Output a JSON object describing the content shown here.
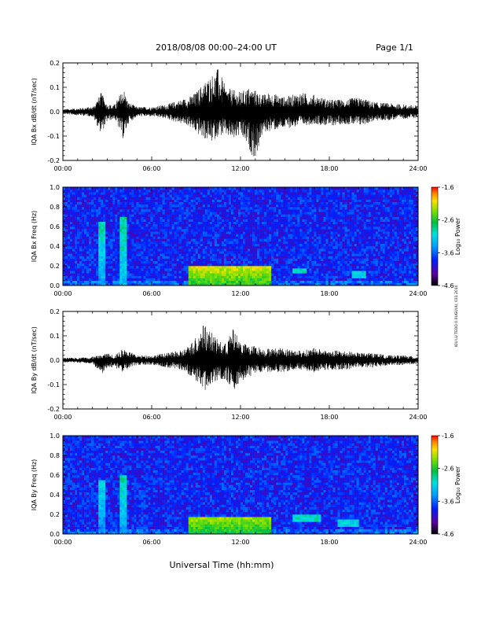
{
  "header": {
    "title": "2018/08/08  00:00–24:00 UT",
    "page": "Page 1/1"
  },
  "credit": "IOU LU TEOO 0.0UGUUU, 031 2010",
  "x_axis_label": "Universal Time (hh:mm)",
  "colors": {
    "trace": "#000000",
    "frame": "#000000",
    "background": "#ffffff"
  },
  "chart_data": [
    {
      "type": "line",
      "ylabel": "IQA Bx dB/dt (nT/sec)",
      "xlim": [
        0,
        24
      ],
      "ylim": [
        -0.2,
        0.2
      ],
      "x_ticks": [
        "00:00",
        "06:00",
        "12:00",
        "18:00",
        "24:00"
      ],
      "y_ticks": [
        "-0.2",
        "-0.1",
        "0.0",
        "0.1",
        "0.2"
      ],
      "series": [
        {
          "x": [
            0,
            1,
            2,
            2.6,
            3,
            3.5,
            4.1,
            4.4,
            5,
            6,
            7,
            8,
            8.5,
            9,
            9.5,
            10,
            10.5,
            11,
            11.5,
            12,
            12.5,
            13,
            13.5,
            14,
            15,
            16,
            17,
            18,
            19,
            20,
            21,
            22,
            23,
            24
          ],
          "envelope_max": [
            0.01,
            0.015,
            0.02,
            0.08,
            0.03,
            0.03,
            0.1,
            0.04,
            0.02,
            0.02,
            0.03,
            0.05,
            0.06,
            0.08,
            0.12,
            0.15,
            0.18,
            0.1,
            0.09,
            0.08,
            0.1,
            0.09,
            0.07,
            0.08,
            0.06,
            0.08,
            0.07,
            0.05,
            0.05,
            0.06,
            0.04,
            0.035,
            0.03,
            0.025
          ],
          "envelope_min": [
            -0.01,
            -0.015,
            -0.02,
            -0.09,
            -0.04,
            -0.03,
            -0.12,
            -0.05,
            -0.02,
            -0.02,
            -0.03,
            -0.05,
            -0.06,
            -0.09,
            -0.11,
            -0.13,
            -0.1,
            -0.1,
            -0.12,
            -0.1,
            -0.15,
            -0.2,
            -0.09,
            -0.08,
            -0.07,
            -0.06,
            -0.05,
            -0.06,
            -0.05,
            -0.06,
            -0.04,
            -0.035,
            -0.03,
            -0.025
          ]
        }
      ]
    },
    {
      "type": "heatmap",
      "ylabel": "IQA Bx Freq (Hz)",
      "xlim": [
        0,
        24
      ],
      "ylim": [
        0,
        1.0
      ],
      "x_ticks": [
        "00:00",
        "06:00",
        "12:00",
        "18:00",
        "24:00"
      ],
      "y_ticks": [
        "0.0",
        "0.2",
        "0.4",
        "0.6",
        "0.8",
        "1.0"
      ],
      "colorbar": {
        "label": "Log₁₀ Power",
        "min": -4.6,
        "max": -1.6,
        "ticks": [
          "-1.6",
          "-2.6",
          "-3.6",
          "-4.6"
        ]
      },
      "features": [
        {
          "x_range": [
            2.4,
            2.8
          ],
          "freq_range": [
            0,
            0.65
          ],
          "level": -3.4
        },
        {
          "x_range": [
            3.9,
            4.3
          ],
          "freq_range": [
            0,
            0.7
          ],
          "level": -3.3
        },
        {
          "x_range": [
            8.5,
            14
          ],
          "freq_range": [
            0,
            0.2
          ],
          "level": -2.6
        },
        {
          "x_range": [
            15.5,
            16.5
          ],
          "freq_range": [
            0.12,
            0.18
          ],
          "level": -3.0
        },
        {
          "x_range": [
            19.5,
            20.5
          ],
          "freq_range": [
            0.08,
            0.14
          ],
          "level": -3.1
        }
      ]
    },
    {
      "type": "line",
      "ylabel": "IQA By dB/dt (nT/sec)",
      "xlim": [
        0,
        24
      ],
      "ylim": [
        -0.2,
        0.2
      ],
      "x_ticks": [
        "00:00",
        "06:00",
        "12:00",
        "18:00",
        "24:00"
      ],
      "y_ticks": [
        "-0.2",
        "-0.1",
        "0.0",
        "0.1",
        "0.2"
      ],
      "series": [
        {
          "x": [
            0,
            1,
            2,
            2.6,
            3,
            3.5,
            4.1,
            4.4,
            5,
            6,
            7,
            8,
            8.5,
            9,
            9.5,
            10,
            10.5,
            11,
            11.5,
            12,
            12.5,
            13,
            13.5,
            14,
            15,
            16,
            17,
            18,
            19,
            20,
            21,
            22,
            23,
            24
          ],
          "envelope_max": [
            0.01,
            0.01,
            0.015,
            0.02,
            0.03,
            0.02,
            0.05,
            0.04,
            0.02,
            0.02,
            0.03,
            0.04,
            0.06,
            0.1,
            0.15,
            0.12,
            0.08,
            0.07,
            0.13,
            0.08,
            0.06,
            0.06,
            0.05,
            0.05,
            0.05,
            0.04,
            0.05,
            0.04,
            0.04,
            0.03,
            0.03,
            0.02,
            0.02,
            0.015
          ],
          "envelope_min": [
            -0.01,
            -0.01,
            -0.015,
            -0.06,
            -0.03,
            -0.03,
            -0.05,
            -0.04,
            -0.02,
            -0.02,
            -0.03,
            -0.04,
            -0.06,
            -0.09,
            -0.14,
            -0.1,
            -0.08,
            -0.08,
            -0.13,
            -0.09,
            -0.07,
            -0.06,
            -0.05,
            -0.05,
            -0.05,
            -0.04,
            -0.05,
            -0.04,
            -0.04,
            -0.03,
            -0.03,
            -0.02,
            -0.02,
            -0.015
          ]
        }
      ]
    },
    {
      "type": "heatmap",
      "ylabel": "IQA By Freq (Hz)",
      "xlim": [
        0,
        24
      ],
      "ylim": [
        0,
        1.0
      ],
      "x_ticks": [
        "00:00",
        "06:00",
        "12:00",
        "18:00",
        "24:00"
      ],
      "y_ticks": [
        "0.0",
        "0.2",
        "0.4",
        "0.6",
        "0.8",
        "1.0"
      ],
      "colorbar": {
        "label": "Log₁₀ Power",
        "min": -4.6,
        "max": -1.6,
        "ticks": [
          "-1.6",
          "-2.6",
          "-3.6",
          "-4.6"
        ]
      },
      "features": [
        {
          "x_range": [
            2.4,
            2.8
          ],
          "freq_range": [
            0,
            0.55
          ],
          "level": -3.5
        },
        {
          "x_range": [
            3.9,
            4.3
          ],
          "freq_range": [
            0,
            0.6
          ],
          "level": -3.4
        },
        {
          "x_range": [
            8.5,
            14
          ],
          "freq_range": [
            0,
            0.18
          ],
          "level": -2.7
        },
        {
          "x_range": [
            15.5,
            17.5
          ],
          "freq_range": [
            0.12,
            0.2
          ],
          "level": -3.0
        },
        {
          "x_range": [
            18.5,
            20
          ],
          "freq_range": [
            0.08,
            0.16
          ],
          "level": -3.1
        }
      ]
    }
  ]
}
